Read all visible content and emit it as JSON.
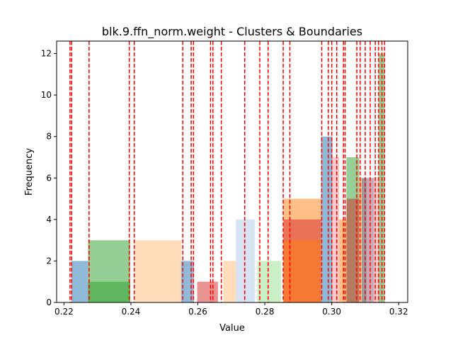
{
  "chart_data": {
    "type": "bar",
    "title": "blk.9.ffn_norm.weight - Clusters & Boundaries",
    "xlabel": "Value",
    "ylabel": "Frequency",
    "xlim": [
      0.2178,
      0.3227
    ],
    "ylim": [
      0,
      12.6
    ],
    "x_ticks": [
      {
        "v": 0.22,
        "label": "0.22"
      },
      {
        "v": 0.24,
        "label": "0.24"
      },
      {
        "v": 0.26,
        "label": "0.26"
      },
      {
        "v": 0.28,
        "label": "0.28"
      },
      {
        "v": 0.3,
        "label": "0.30"
      },
      {
        "v": 0.32,
        "label": "0.32"
      }
    ],
    "y_ticks": [
      {
        "v": 0,
        "label": "0"
      },
      {
        "v": 2,
        "label": "2"
      },
      {
        "v": 4,
        "label": "4"
      },
      {
        "v": 6,
        "label": "6"
      },
      {
        "v": 8,
        "label": "8"
      },
      {
        "v": 10,
        "label": "10"
      },
      {
        "v": 12,
        "label": "12"
      }
    ],
    "bars": [
      {
        "x0": 0.2222,
        "x1": 0.2272,
        "height": 2,
        "color": "#1f77b4"
      },
      {
        "x0": 0.2272,
        "x1": 0.2398,
        "height": 3,
        "color": "#2ca02c"
      },
      {
        "x0": 0.2272,
        "x1": 0.2398,
        "height": 1,
        "color": "#2ca02c"
      },
      {
        "x0": 0.2412,
        "x1": 0.255,
        "height": 3,
        "color": "#ffbb78"
      },
      {
        "x0": 0.255,
        "x1": 0.2588,
        "height": 2,
        "color": "#1f77b4"
      },
      {
        "x0": 0.2598,
        "x1": 0.266,
        "height": 1,
        "color": "#d62728"
      },
      {
        "x0": 0.2676,
        "x1": 0.2714,
        "height": 2,
        "color": "#ffbb78"
      },
      {
        "x0": 0.2714,
        "x1": 0.277,
        "height": 4,
        "color": "#aec7e8"
      },
      {
        "x0": 0.2778,
        "x1": 0.2848,
        "height": 2,
        "color": "#98df8a"
      },
      {
        "x0": 0.2856,
        "x1": 0.2968,
        "height": 5,
        "color": "#ff7f0e"
      },
      {
        "x0": 0.2856,
        "x1": 0.2968,
        "height": 4,
        "color": "#d62728"
      },
      {
        "x0": 0.2856,
        "x1": 0.2968,
        "height": 3,
        "color": "#ff7f0e"
      },
      {
        "x0": 0.2968,
        "x1": 0.3002,
        "height": 8,
        "color": "#1f77b4"
      },
      {
        "x0": 0.3002,
        "x1": 0.3022,
        "height": 7,
        "color": "#ff9896"
      },
      {
        "x0": 0.3022,
        "x1": 0.3044,
        "height": 4,
        "color": "#ff7f0e"
      },
      {
        "x0": 0.3044,
        "x1": 0.3082,
        "height": 7,
        "color": "#2ca02c"
      },
      {
        "x0": 0.3044,
        "x1": 0.3082,
        "height": 5,
        "color": "#d62728"
      },
      {
        "x0": 0.3082,
        "x1": 0.3104,
        "height": 6,
        "color": "#ff7f0e"
      },
      {
        "x0": 0.309,
        "x1": 0.3126,
        "height": 6,
        "color": "#1f77b4"
      },
      {
        "x0": 0.3104,
        "x1": 0.314,
        "height": 6,
        "color": "#ff9896"
      },
      {
        "x0": 0.314,
        "x1": 0.3158,
        "height": 12,
        "color": "#2ca02c"
      }
    ],
    "bar_opacity": 0.5,
    "boundaries": [
      0.2218,
      0.2223,
      0.2275,
      0.2395,
      0.241,
      0.2555,
      0.258,
      0.2587,
      0.2638,
      0.2645,
      0.267,
      0.274,
      0.2785,
      0.281,
      0.2855,
      0.2875,
      0.297,
      0.299,
      0.3,
      0.3015,
      0.3035,
      0.304,
      0.3075,
      0.3085,
      0.31,
      0.3115,
      0.313,
      0.314,
      0.315,
      0.3158
    ],
    "boundary_color": "#ff0000",
    "grid": false
  }
}
